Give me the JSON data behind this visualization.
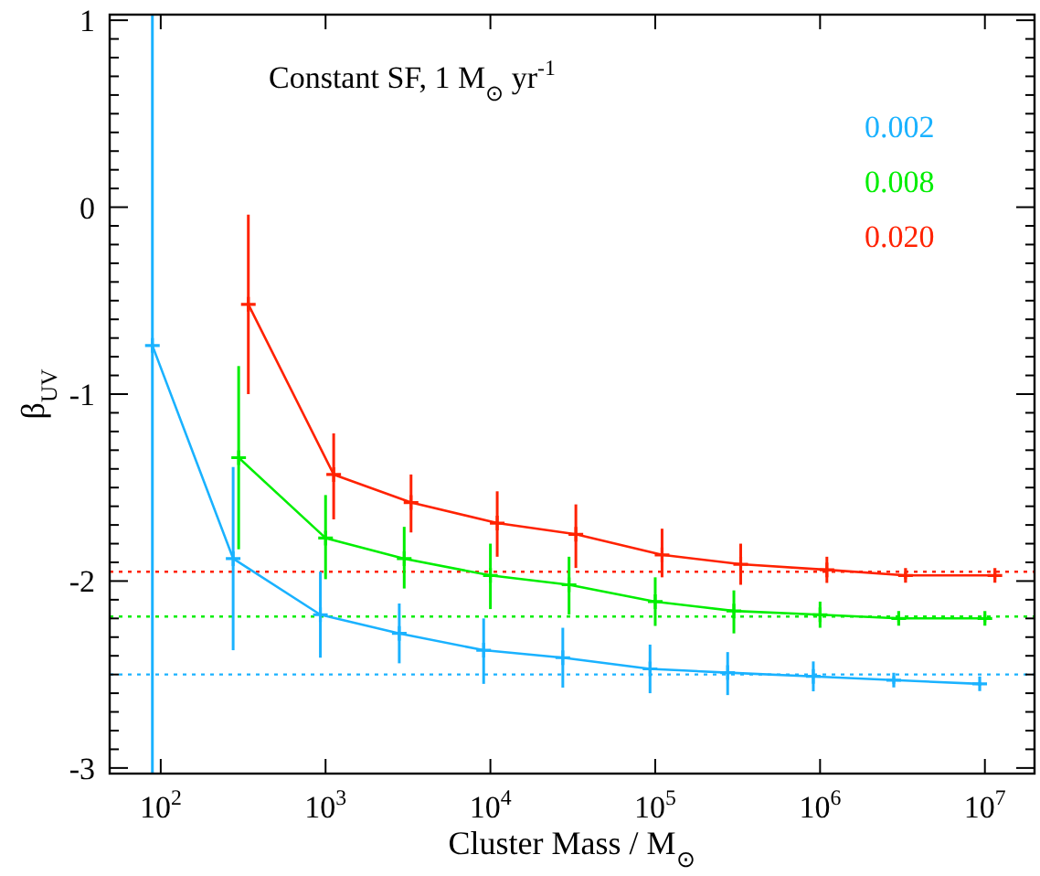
{
  "chart_data": {
    "type": "line",
    "xlabel": "Cluster Mass / M$_{⊙}$",
    "ylabel": "β$_{UV}$",
    "annotations": [
      "Constant SF, 1 M$_{⊙}$ yr$^{-1}$"
    ],
    "log": "x",
    "xlim": [
      49,
      20000000
    ],
    "ylim": [
      -3.03,
      1.03
    ],
    "xticks": [
      {
        "value": 100,
        "label": "10$^{2}$"
      },
      {
        "value": 1000,
        "label": "10$^{3}$"
      },
      {
        "value": 10000,
        "label": "10$^{4}$"
      },
      {
        "value": 100000,
        "label": "10$^{5}$"
      },
      {
        "value": 1000000,
        "label": "10$^{6}$"
      },
      {
        "value": 10000000,
        "label": "10$^{7}$"
      }
    ],
    "yticks": [
      -3,
      {
        "value": -2.9,
        "label": null
      },
      {
        "value": -2.8,
        "label": null
      },
      {
        "value": -2.7,
        "label": null
      },
      {
        "value": -2.6,
        "label": null
      },
      {
        "value": -2.5,
        "label": null
      },
      {
        "value": -2.4,
        "label": null
      },
      {
        "value": -2.3,
        "label": null
      },
      {
        "value": -2.2,
        "label": null
      },
      {
        "value": -2.1,
        "label": null
      },
      -2,
      {
        "value": -1.9,
        "label": null
      },
      {
        "value": -1.8,
        "label": null
      },
      {
        "value": -1.7,
        "label": null
      },
      {
        "value": -1.6,
        "label": null
      },
      {
        "value": -1.5,
        "label": null
      },
      {
        "value": -1.4,
        "label": null
      },
      {
        "value": -1.3,
        "label": null
      },
      {
        "value": -1.2,
        "label": null
      },
      {
        "value": -1.1,
        "label": null
      },
      -1,
      {
        "value": -0.9,
        "label": null
      },
      {
        "value": -0.8,
        "label": null
      },
      {
        "value": -0.7,
        "label": null
      },
      {
        "value": -0.6,
        "label": null
      },
      {
        "value": -0.5,
        "label": null
      },
      {
        "value": -0.4,
        "label": null
      },
      {
        "value": -0.3,
        "label": null
      },
      {
        "value": -0.2,
        "label": null
      },
      {
        "value": -0.1,
        "label": null
      },
      0,
      {
        "value": 0.1,
        "label": null
      },
      {
        "value": 0.2,
        "label": null
      },
      {
        "value": 0.3,
        "label": null
      },
      {
        "value": 0.4,
        "label": null
      },
      {
        "value": 0.5,
        "label": null
      },
      {
        "value": 0.6,
        "label": null
      },
      {
        "value": 0.7,
        "label": null
      },
      {
        "value": 0.8,
        "label": null
      },
      {
        "value": 0.9,
        "label": null
      },
      1
    ],
    "grid": false,
    "legend": "top right",
    "marker": "cross",
    "line_style": "solid",
    "ref_lines": [
      {
        "axis": "y",
        "value": -1.95,
        "color": "#ff2200",
        "line_style": "dotted"
      },
      {
        "axis": "y",
        "value": -2.19,
        "color": "#00ee00",
        "line_style": "dotted"
      },
      {
        "axis": "y",
        "value": -2.5,
        "color": "#1ab2ff",
        "line_style": "dotted"
      }
    ],
    "series": [
      {
        "name": "0.002",
        "color": "#1ab2ff",
        "x": [
          89,
          275,
          930,
          2800,
          9100,
          27500,
          93000,
          275000,
          910000,
          2800000,
          9300000
        ],
        "values": [
          -0.74,
          -1.88,
          -2.18,
          -2.28,
          -2.37,
          -2.41,
          -2.47,
          -2.49,
          -2.51,
          -2.53,
          -2.55
        ],
        "errors": [
          [
            -3.03,
            1.03
          ],
          [
            -2.37,
            -1.39
          ],
          [
            -2.41,
            -1.95
          ],
          [
            -2.44,
            -2.12
          ],
          [
            -2.55,
            -2.2
          ],
          [
            -2.57,
            -2.25
          ],
          [
            -2.6,
            -2.34
          ],
          [
            -2.61,
            -2.38
          ],
          [
            -2.59,
            -2.43
          ],
          [
            -2.55,
            -2.51
          ],
          [
            -2.56,
            -2.54
          ]
        ]
      },
      {
        "name": "0.008",
        "color": "#00ee00",
        "x": [
          297,
          1000,
          3000,
          10000,
          30000,
          100000,
          300000,
          1000000,
          3000000,
          10000000
        ],
        "values": [
          -1.34,
          -1.77,
          -1.88,
          -1.97,
          -2.02,
          -2.11,
          -2.16,
          -2.18,
          -2.2,
          -2.2
        ],
        "errors": [
          [
            -1.83,
            -0.85
          ],
          [
            -1.99,
            -1.54
          ],
          [
            -2.04,
            -1.71
          ],
          [
            -2.15,
            -1.8
          ],
          [
            -2.18,
            -1.87
          ],
          [
            -2.24,
            -1.98
          ],
          [
            -2.28,
            -2.05
          ],
          [
            -2.25,
            -2.11
          ],
          [
            -2.22,
            -2.18
          ],
          [
            -2.22,
            -2.18
          ]
        ]
      },
      {
        "name": "0.020",
        "color": "#ff2200",
        "x": [
          340,
          1120,
          3300,
          11000,
          33000,
          110000,
          330000,
          1100000,
          3300000,
          11500000
        ],
        "values": [
          -0.52,
          -1.43,
          -1.58,
          -1.69,
          -1.75,
          -1.86,
          -1.91,
          -1.94,
          -1.97,
          -1.97
        ],
        "errors": [
          [
            -1,
            -0.04
          ],
          [
            -1.67,
            -1.21
          ],
          [
            -1.74,
            -1.43
          ],
          [
            -1.87,
            -1.52
          ],
          [
            -1.93,
            -1.59
          ],
          [
            -1.98,
            -1.72
          ],
          [
            -2.02,
            -1.8
          ],
          [
            -2.01,
            -1.87
          ],
          [
            -1.99,
            -1.95
          ],
          [
            -1.99,
            -1.95
          ]
        ]
      }
    ]
  }
}
